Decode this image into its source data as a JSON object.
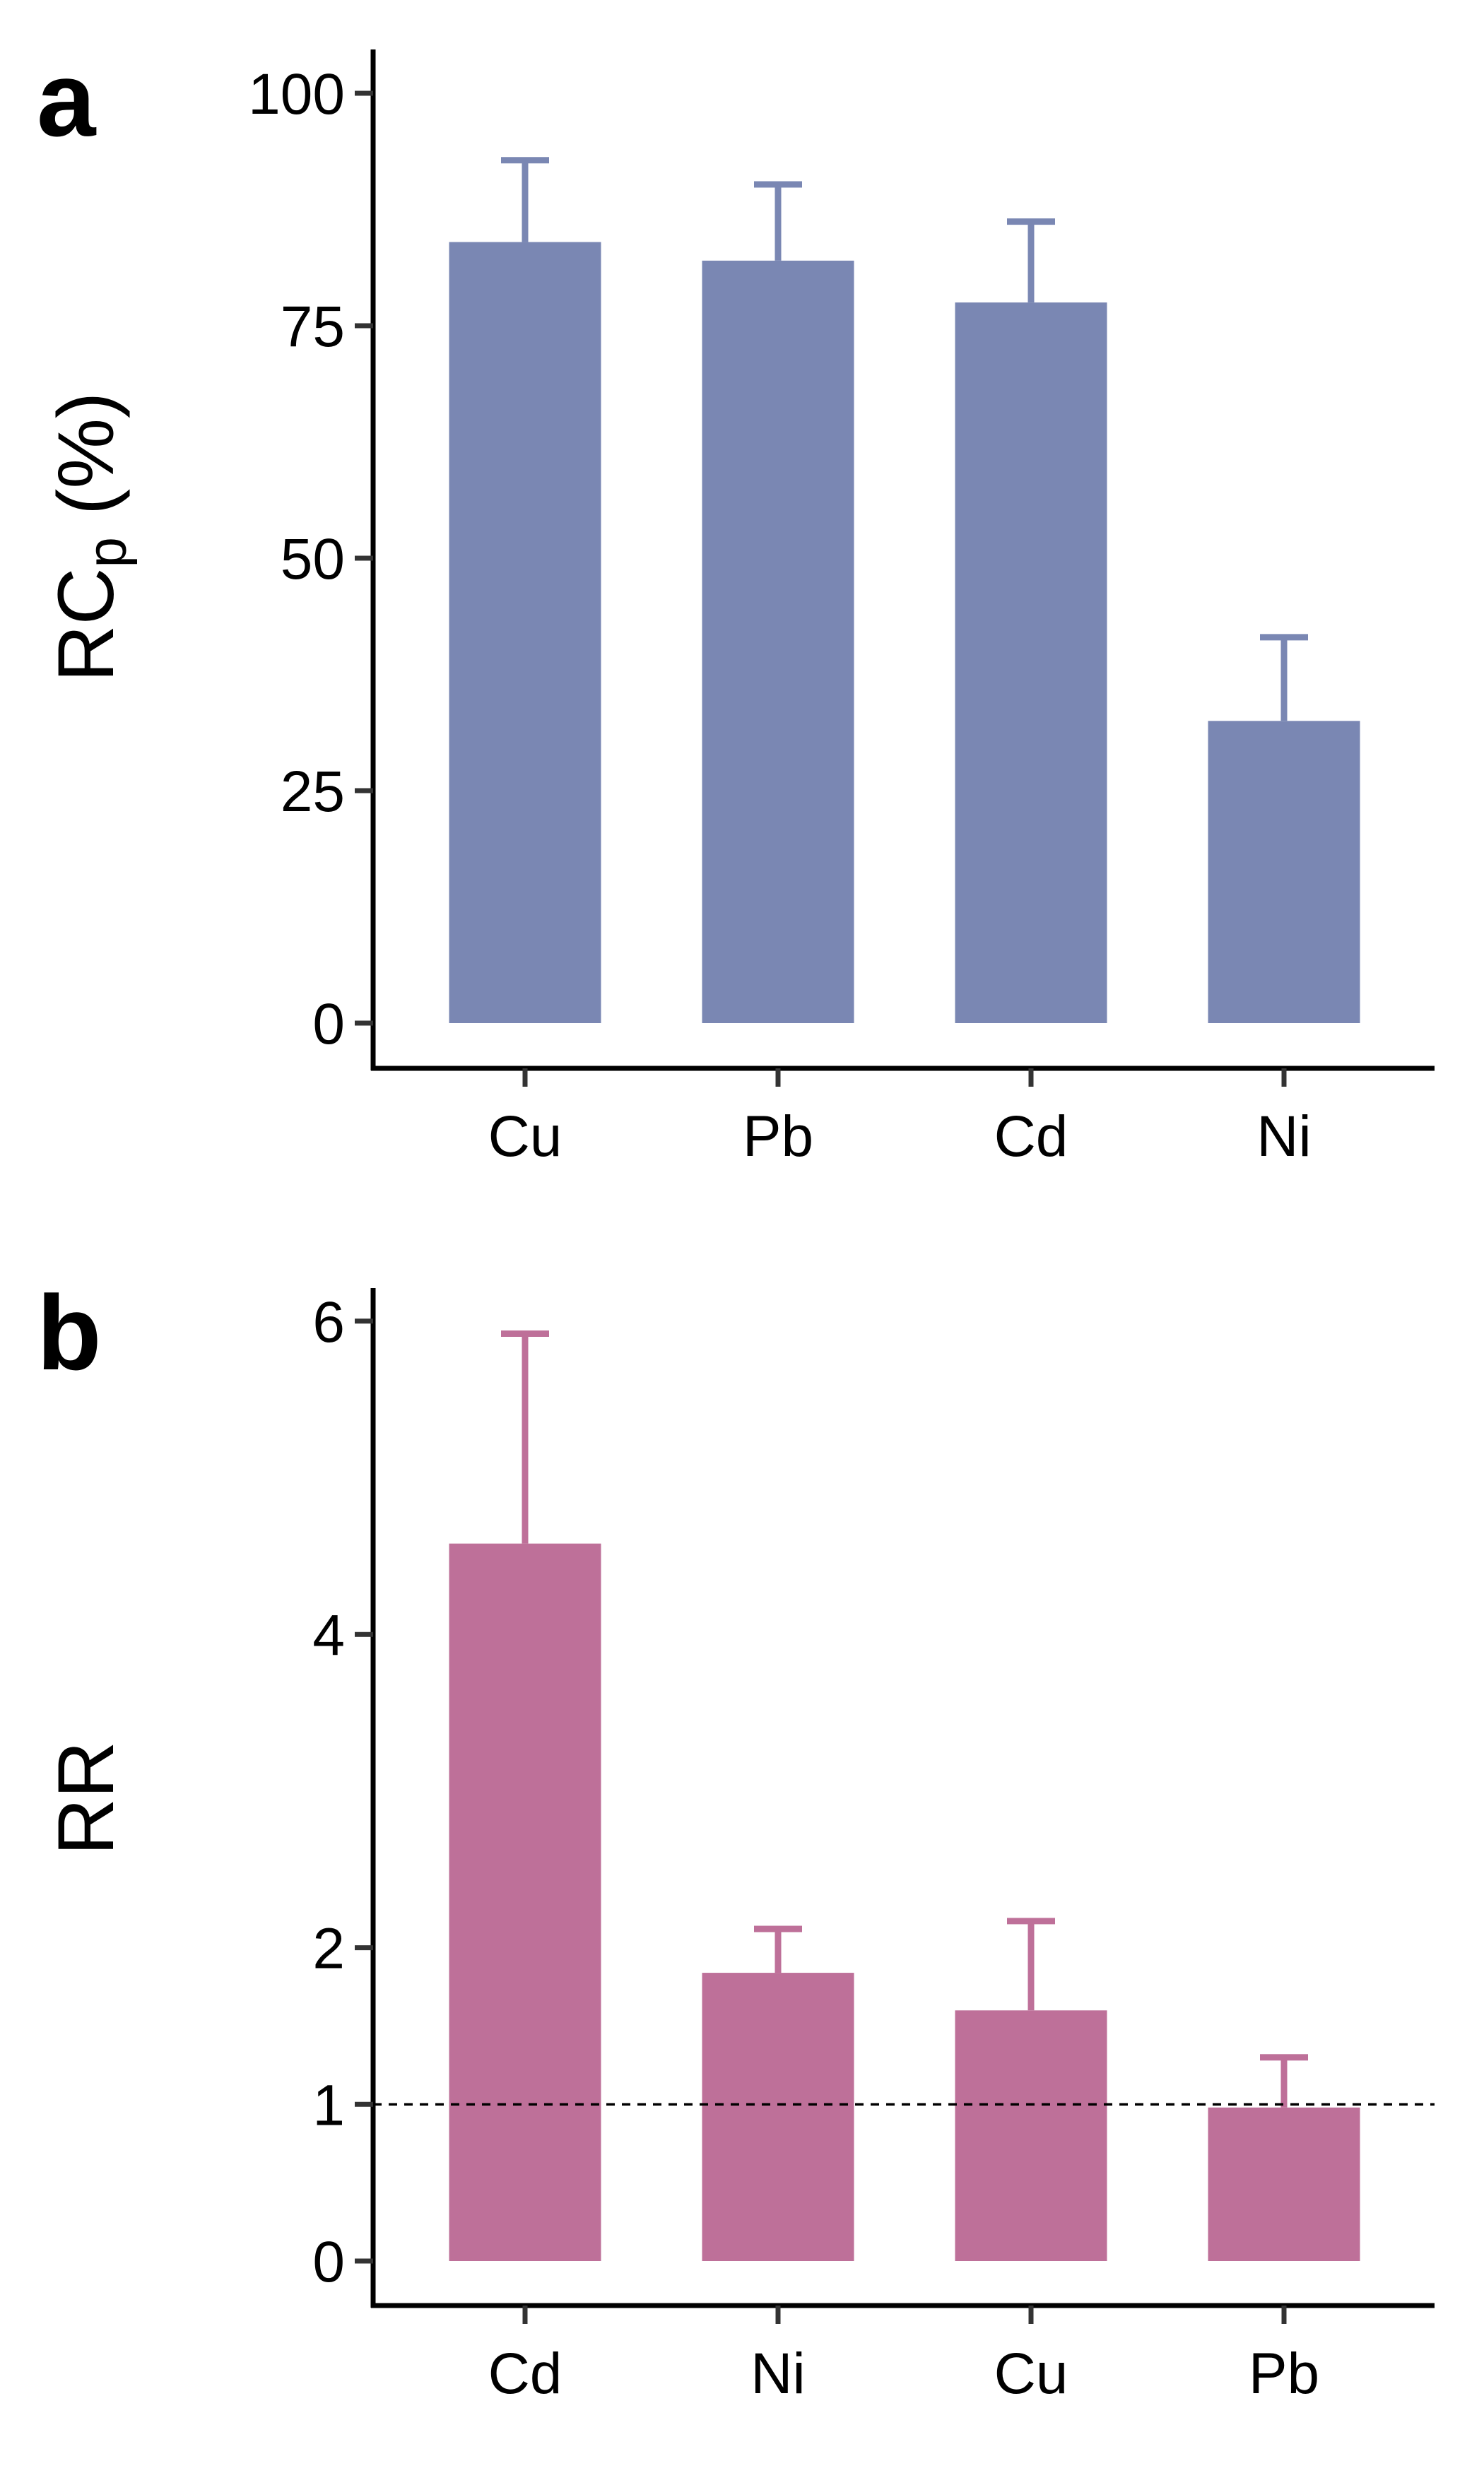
{
  "panels": [
    {
      "letter": "a",
      "ylabel_main": "RC",
      "ylabel_sub": "p",
      "ylabel_tail": " (%)",
      "y_ticks": [
        "0",
        "25",
        "50",
        "75",
        "100"
      ],
      "color": "#7a87b3"
    },
    {
      "letter": "b",
      "ylabel_main": "RR",
      "y_ticks": [
        "0",
        "1",
        "2",
        "4",
        "6"
      ],
      "color": "#be7099"
    }
  ],
  "chart_data": [
    {
      "type": "bar",
      "panel": "a",
      "categories": [
        "Cu",
        "Pb",
        "Cd",
        "Ni"
      ],
      "values": [
        84,
        82,
        77.5,
        32.5
      ],
      "error_upper": [
        92.8,
        90.2,
        86.2,
        41.5
      ],
      "ylim": [
        0,
        105
      ],
      "y_ticks": [
        0,
        25,
        50,
        75,
        100
      ],
      "xlabel": "",
      "ylabel": "RCp (%)",
      "grid": false
    },
    {
      "type": "bar",
      "panel": "b",
      "categories": [
        "Cd",
        "Ni",
        "Cu",
        "Pb"
      ],
      "values": [
        4.58,
        1.84,
        1.6,
        0.98
      ],
      "error_upper": [
        5.92,
        2.12,
        2.17,
        1.3
      ],
      "reference_line": 1,
      "ylim": [
        0,
        6.2
      ],
      "y_ticks": [
        0,
        1,
        2,
        4,
        6
      ],
      "xlabel": "",
      "ylabel": "RR",
      "grid": false
    }
  ]
}
